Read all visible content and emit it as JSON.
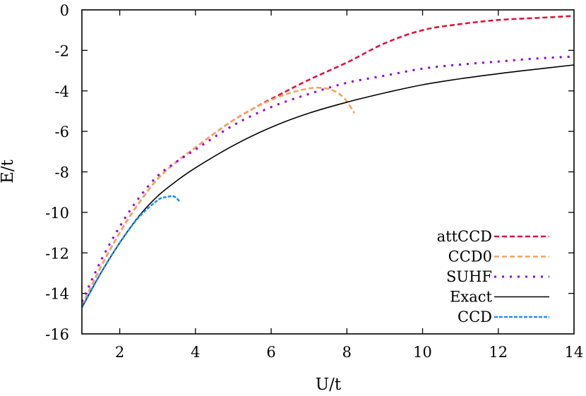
{
  "chart_data": {
    "type": "line",
    "title": "",
    "xlabel": "U/t",
    "ylabel": "E/t",
    "xlim": [
      1,
      14
    ],
    "ylim": [
      -16,
      0
    ],
    "xticks": [
      2,
      4,
      6,
      8,
      10,
      12,
      14
    ],
    "yticks": [
      0,
      -2,
      -4,
      -6,
      -8,
      -10,
      -12,
      -14,
      -16
    ],
    "grid": false,
    "legend_position": "lower right",
    "series": [
      {
        "name": "attCCD",
        "color": "#dc143c",
        "style": "dashed",
        "x": [
          1,
          1.5,
          2,
          2.5,
          3,
          3.5,
          4,
          4.5,
          5,
          5.5,
          6,
          7,
          8,
          9,
          10,
          11,
          12,
          13,
          14
        ],
        "y": [
          -14.6,
          -12.7,
          -11.0,
          -9.55,
          -8.35,
          -7.5,
          -6.8,
          -6.1,
          -5.45,
          -4.9,
          -4.4,
          -3.45,
          -2.6,
          -1.65,
          -1.0,
          -0.7,
          -0.5,
          -0.4,
          -0.3
        ]
      },
      {
        "name": "CCD0",
        "color": "#f4a460",
        "style": "dashed",
        "x": [
          1,
          1.5,
          2,
          2.5,
          3,
          3.5,
          4,
          4.5,
          5,
          5.5,
          6,
          6.5,
          7,
          7.3,
          7.6,
          7.9,
          8.1,
          8.2
        ],
        "y": [
          -14.6,
          -12.7,
          -11.0,
          -9.55,
          -8.35,
          -7.5,
          -6.8,
          -6.1,
          -5.45,
          -4.9,
          -4.45,
          -4.1,
          -3.88,
          -3.85,
          -3.95,
          -4.3,
          -4.8,
          -5.1
        ]
      },
      {
        "name": "SUHF",
        "color": "#9400d3",
        "style": "dotted",
        "x": [
          1,
          1.5,
          2,
          2.5,
          3,
          3.5,
          4,
          5,
          6,
          7,
          8,
          9,
          10,
          11,
          12,
          13,
          14
        ],
        "y": [
          -14.4,
          -12.4,
          -10.7,
          -9.3,
          -8.2,
          -7.5,
          -6.9,
          -5.7,
          -4.8,
          -4.15,
          -3.6,
          -3.25,
          -2.9,
          -2.7,
          -2.55,
          -2.4,
          -2.3
        ]
      },
      {
        "name": "Exact",
        "color": "#000000",
        "style": "solid",
        "x": [
          1,
          1.5,
          2,
          2.5,
          3,
          3.5,
          4,
          5,
          6,
          7,
          8,
          9,
          10,
          11,
          12,
          13,
          14
        ],
        "y": [
          -14.7,
          -13.0,
          -11.5,
          -10.2,
          -9.2,
          -8.45,
          -7.8,
          -6.7,
          -5.8,
          -5.1,
          -4.56,
          -4.1,
          -3.7,
          -3.4,
          -3.15,
          -2.93,
          -2.72
        ]
      },
      {
        "name": "CCD",
        "color": "#1e90ff",
        "style": "dashed",
        "x": [
          1,
          1.5,
          2,
          2.5,
          3,
          3.2,
          3.4,
          3.5,
          3.6
        ],
        "y": [
          -14.7,
          -13.0,
          -11.5,
          -10.25,
          -9.4,
          -9.25,
          -9.2,
          -9.3,
          -9.5
        ]
      }
    ]
  },
  "legend": {
    "items": [
      {
        "label": "attCCD",
        "color": "#dc143c",
        "dash": "7,4"
      },
      {
        "label": "CCD0",
        "color": "#f4a460",
        "dash": "7,4"
      },
      {
        "label": "SUHF",
        "color": "#9400d3",
        "dash": "3,8"
      },
      {
        "label": "Exact",
        "color": "#000000",
        "dash": ""
      },
      {
        "label": "CCD",
        "color": "#1e90ff",
        "dash": "5,2"
      }
    ]
  }
}
